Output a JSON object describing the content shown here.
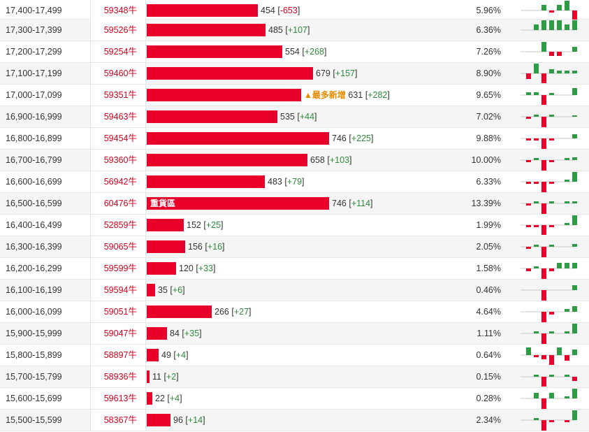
{
  "colors": {
    "bar": "#e8002a",
    "up": "#2e9b45",
    "down": "#e8002a",
    "positive_change": "#2e8b3a",
    "negative_change": "#d6001c",
    "marker": "#e58b00"
  },
  "bar_max": 760,
  "rows": [
    {
      "range": "17,400-17,499",
      "position": "59348牛",
      "volume": 454,
      "volume_text": "454",
      "change": "-653",
      "pct": "5.96%",
      "tag": "",
      "mark": "",
      "spark": [
        0,
        0,
        0.3,
        -0.1,
        0.3,
        0.5,
        -0.6
      ]
    },
    {
      "range": "17,300-17,399",
      "position": "59526牛",
      "volume": 485,
      "volume_text": "485",
      "change": "+107",
      "pct": "6.36%",
      "tag": "",
      "mark": "",
      "spark": [
        0,
        0.3,
        0.5,
        0.5,
        0.5,
        0.3,
        0.5
      ]
    },
    {
      "range": "17,200-17,299",
      "position": "59254牛",
      "volume": 554,
      "volume_text": "554",
      "change": "+268",
      "pct": "7.26%",
      "tag": "",
      "mark": "",
      "spark": [
        0,
        0,
        0.5,
        -0.2,
        -0.2,
        0,
        0.25
      ]
    },
    {
      "range": "17,100-17,199",
      "position": "59460牛",
      "volume": 679,
      "volume_text": "679",
      "change": "+157",
      "pct": "8.90%",
      "tag": "",
      "mark": "",
      "spark": [
        -0.3,
        0.5,
        -0.5,
        0.2,
        0.15,
        0.15,
        0.15
      ]
    },
    {
      "range": "17,000-17,099",
      "position": "59351牛",
      "volume": 631,
      "volume_text": "631",
      "change": "+282",
      "pct": "9.65%",
      "tag": "",
      "mark": "▲最多新增",
      "spark": [
        0.15,
        0.15,
        -0.5,
        0.1,
        0,
        0,
        0.35
      ]
    },
    {
      "range": "16,900-16,999",
      "position": "59463牛",
      "volume": 535,
      "volume_text": "535",
      "change": "+44",
      "pct": "7.02%",
      "tag": "",
      "mark": "",
      "spark": [
        -0.1,
        0.1,
        -0.6,
        0.1,
        0,
        0,
        0.05
      ]
    },
    {
      "range": "16,800-16,899",
      "position": "59454牛",
      "volume": 746,
      "volume_text": "746",
      "change": "+225",
      "pct": "9.88%",
      "tag": "",
      "mark": "",
      "spark": [
        -0.1,
        -0.1,
        -0.6,
        -0.1,
        0,
        0,
        0.2
      ]
    },
    {
      "range": "16,700-16,799",
      "position": "59360牛",
      "volume": 658,
      "volume_text": "658",
      "change": "+103",
      "pct": "10.00%",
      "tag": "",
      "mark": "",
      "spark": [
        -0.1,
        0.1,
        -0.6,
        -0.1,
        0,
        0.1,
        0.15
      ]
    },
    {
      "range": "16,600-16,699",
      "position": "56942牛",
      "volume": 483,
      "volume_text": "483",
      "change": "+79",
      "pct": "6.33%",
      "tag": "",
      "mark": "",
      "spark": [
        -0.1,
        -0.1,
        -0.6,
        -0.1,
        0,
        0.1,
        0.5
      ]
    },
    {
      "range": "16,500-16,599",
      "position": "60476牛",
      "volume": 746,
      "volume_text": "746",
      "change": "+114",
      "pct": "13.39%",
      "tag": "重貨區",
      "mark": "",
      "spark": [
        -0.1,
        0.1,
        -0.6,
        0.1,
        0,
        0.1,
        0.1
      ]
    },
    {
      "range": "16,400-16,499",
      "position": "52859牛",
      "volume": 152,
      "volume_text": "152",
      "change": "+25",
      "pct": "1.99%",
      "tag": "",
      "mark": "",
      "spark": [
        -0.1,
        -0.1,
        -0.5,
        -0.1,
        0,
        0.1,
        0.5
      ]
    },
    {
      "range": "16,300-16,399",
      "position": "59065牛",
      "volume": 156,
      "volume_text": "156",
      "change": "+16",
      "pct": "2.05%",
      "tag": "",
      "mark": "",
      "spark": [
        -0.1,
        0.1,
        -0.6,
        0.1,
        0,
        0,
        0.15
      ]
    },
    {
      "range": "16,200-16,299",
      "position": "59599牛",
      "volume": 120,
      "volume_text": "120",
      "change": "+33",
      "pct": "1.58%",
      "tag": "",
      "mark": "",
      "spark": [
        -0.15,
        0.1,
        -0.6,
        -0.15,
        0.3,
        0.3,
        0.3
      ]
    },
    {
      "range": "16,100-16,199",
      "position": "59594牛",
      "volume": 35,
      "volume_text": "35",
      "change": "+6",
      "pct": "0.46%",
      "tag": "",
      "mark": "",
      "spark": [
        0,
        0,
        -0.6,
        0,
        0,
        0,
        0.25
      ]
    },
    {
      "range": "16,000-16,099",
      "position": "59051牛",
      "volume": 266,
      "volume_text": "266",
      "change": "+27",
      "pct": "4.64%",
      "tag": "",
      "mark": "",
      "spark": [
        0,
        0,
        -0.6,
        -0.15,
        0,
        0.15,
        0.3
      ]
    },
    {
      "range": "15,900-15,999",
      "position": "59047牛",
      "volume": 84,
      "volume_text": "84",
      "change": "+35",
      "pct": "1.11%",
      "tag": "",
      "mark": "",
      "spark": [
        0,
        0.1,
        -0.6,
        0.1,
        0,
        0.1,
        0.5
      ]
    },
    {
      "range": "15,800-15,899",
      "position": "58897牛",
      "volume": 49,
      "volume_text": "49",
      "change": "+4",
      "pct": "0.64%",
      "tag": "",
      "mark": "",
      "spark": [
        0.4,
        -0.1,
        -0.2,
        -0.5,
        0.4,
        -0.3,
        0.3
      ]
    },
    {
      "range": "15,700-15,799",
      "position": "58936牛",
      "volume": 11,
      "volume_text": "11",
      "change": "+2",
      "pct": "0.15%",
      "tag": "",
      "mark": "",
      "spark": [
        0,
        0.1,
        -0.5,
        0.1,
        0,
        0.1,
        -0.2
      ]
    },
    {
      "range": "15,600-15,699",
      "position": "59613牛",
      "volume": 22,
      "volume_text": "22",
      "change": "+4",
      "pct": "0.28%",
      "tag": "",
      "mark": "",
      "spark": [
        0,
        0.3,
        -0.6,
        0.3,
        0,
        0.1,
        0.5
      ]
    },
    {
      "range": "15,500-15,599",
      "position": "58367牛",
      "volume": 96,
      "volume_text": "96",
      "change": "+14",
      "pct": "2.34%",
      "tag": "",
      "mark": "",
      "spark": [
        0,
        0.1,
        -0.6,
        -0.1,
        0,
        -0.1,
        0.5
      ]
    }
  ]
}
